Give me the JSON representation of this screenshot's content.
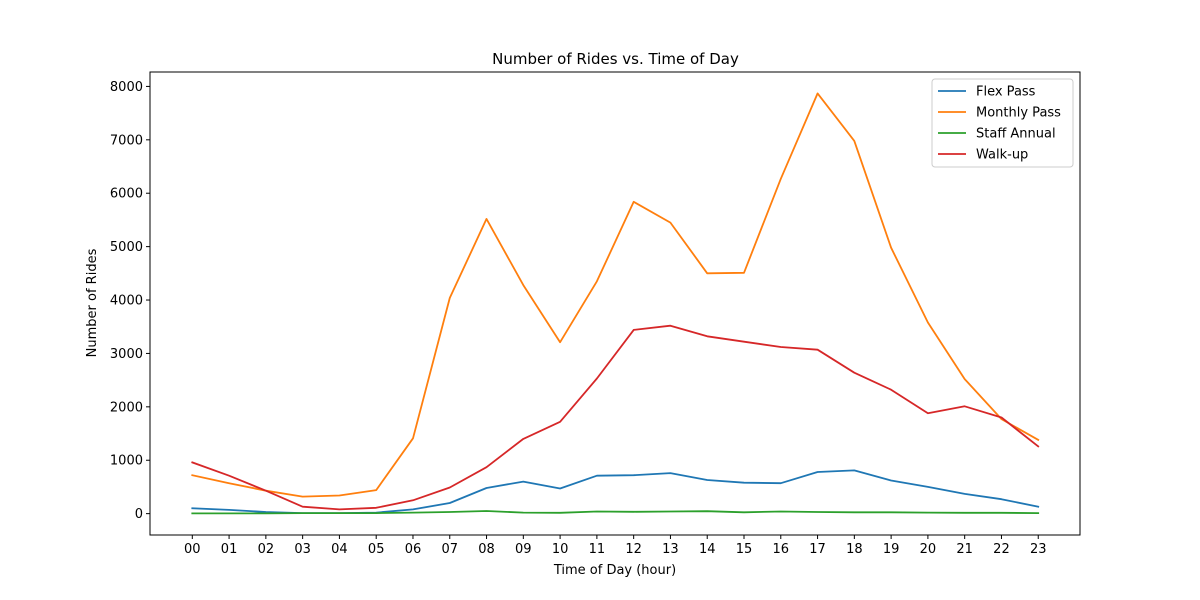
{
  "chart_data": {
    "type": "line",
    "title": "Number of Rides vs. Time of Day",
    "xlabel": "Time of Day (hour)",
    "ylabel": "Number of Rides",
    "ylim": [
      -400,
      8270
    ],
    "yticks": [
      0,
      1000,
      2000,
      3000,
      4000,
      5000,
      6000,
      7000,
      8000
    ],
    "ytick_labels": [
      "0",
      "1000",
      "2000",
      "3000",
      "4000",
      "5000",
      "6000",
      "7000",
      "8000"
    ],
    "grid": false,
    "legend_position": "top-right",
    "categories": [
      "00",
      "01",
      "02",
      "03",
      "04",
      "05",
      "06",
      "07",
      "08",
      "09",
      "10",
      "11",
      "12",
      "13",
      "14",
      "15",
      "16",
      "17",
      "18",
      "19",
      "20",
      "21",
      "22",
      "23"
    ],
    "series": [
      {
        "name": "Flex Pass",
        "color": "#1f77b4",
        "values": [
          100,
          70,
          30,
          10,
          10,
          20,
          80,
          200,
          480,
          600,
          470,
          710,
          720,
          760,
          630,
          580,
          570,
          780,
          810,
          620,
          500,
          370,
          270,
          130
        ]
      },
      {
        "name": "Monthly Pass",
        "color": "#ff7f0e",
        "values": [
          720,
          570,
          430,
          320,
          340,
          440,
          1410,
          4040,
          5520,
          4280,
          3210,
          4350,
          5840,
          5450,
          4500,
          4510,
          6270,
          7870,
          6980,
          4980,
          3580,
          2520,
          1770,
          1380
        ]
      },
      {
        "name": "Staff Annual",
        "color": "#2ca02c",
        "values": [
          5,
          5,
          5,
          10,
          10,
          10,
          20,
          30,
          50,
          20,
          15,
          40,
          35,
          40,
          45,
          25,
          40,
          30,
          25,
          25,
          20,
          15,
          15,
          10
        ]
      },
      {
        "name": "Walk-up",
        "color": "#d62728",
        "values": [
          960,
          710,
          430,
          130,
          80,
          110,
          250,
          490,
          870,
          1400,
          1720,
          2530,
          3440,
          3520,
          3320,
          3220,
          3120,
          3070,
          2640,
          2320,
          1880,
          2010,
          1800,
          1260
        ]
      }
    ]
  }
}
